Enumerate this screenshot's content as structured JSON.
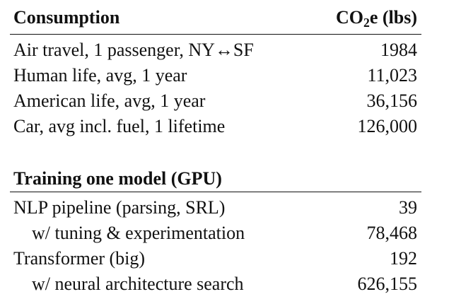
{
  "consumption": {
    "header_label": "Consumption",
    "header_value_prefix": "CO",
    "header_value_sub": "2",
    "header_value_suffix": "e (lbs)",
    "rows": [
      {
        "label": "Air travel, 1 passenger, NY↔SF",
        "value": "1984"
      },
      {
        "label": "Human life, avg, 1 year",
        "value": "11,023"
      },
      {
        "label": "American life, avg, 1 year",
        "value": "36,156"
      },
      {
        "label": "Car, avg incl. fuel, 1 lifetime",
        "value": "126,000"
      }
    ]
  },
  "training": {
    "header_label": "Training one model (GPU)",
    "rows": [
      {
        "label": "NLP pipeline (parsing, SRL)",
        "value": "39"
      },
      {
        "label": "w/ tuning & experimentation",
        "value": "78,468"
      },
      {
        "label": "Transformer (big)",
        "value": "192"
      },
      {
        "label": "w/ neural architecture search",
        "value": "626,155"
      }
    ]
  }
}
